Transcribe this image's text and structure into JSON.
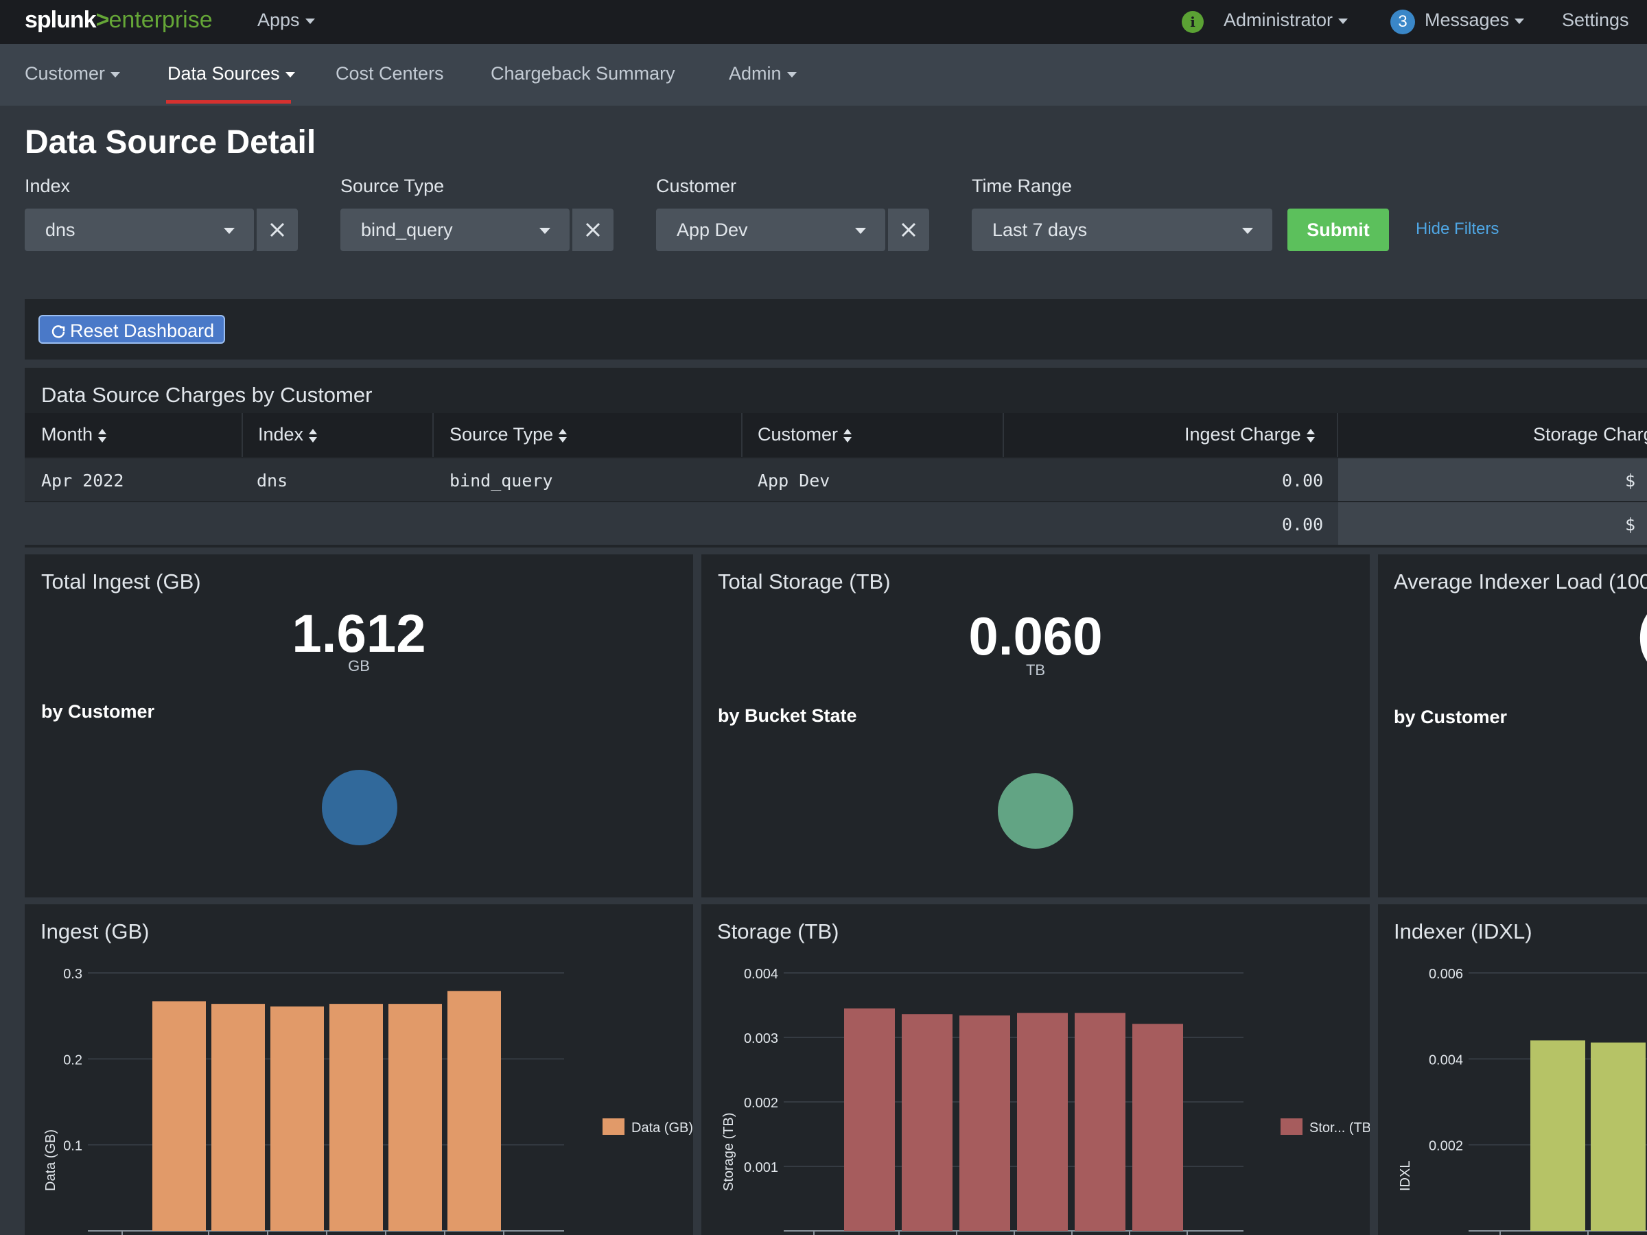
{
  "topbar": {
    "logo_brand": "splunk",
    "logo_gt": ">",
    "logo_product": "enterprise",
    "apps_label": "Apps",
    "user_label": "Administrator",
    "messages_count": "3",
    "messages_label": "Messages",
    "settings_label": "Settings"
  },
  "appnav": {
    "items": [
      {
        "label": "Customer"
      },
      {
        "label": "Data Sources"
      },
      {
        "label": "Cost Centers"
      },
      {
        "label": "Chargeback Summary"
      },
      {
        "label": "Admin"
      }
    ],
    "active": "Data Sources"
  },
  "page": {
    "title": "Data Source Detail"
  },
  "filters": {
    "index": {
      "label": "Index",
      "value": "dns"
    },
    "source_type": {
      "label": "Source Type",
      "value": "bind_query"
    },
    "customer": {
      "label": "Customer",
      "value": "App Dev"
    },
    "time_range": {
      "label": "Time Range",
      "value": "Last 7 days"
    },
    "submit_label": "Submit",
    "hide_filters_label": "Hide Filters"
  },
  "reset": {
    "label": "Reset Dashboard"
  },
  "charges_table": {
    "title": "Data Source Charges by Customer",
    "columns": [
      "Month",
      "Index",
      "Source Type",
      "Customer",
      "Ingest Charge",
      "Storage Charg"
    ],
    "rows": [
      {
        "month": "Apr 2022",
        "index": "dns",
        "source_type": "bind_query",
        "customer": "App Dev",
        "ingest_charge": "0.00",
        "storage_charge": "$ "
      }
    ],
    "total_row": {
      "ingest_charge": "0.00",
      "storage_charge": "$ "
    }
  },
  "single_values": {
    "ingest": {
      "title": "Total Ingest (GB)",
      "value": "1.612",
      "unit": "GB",
      "subhead": "by Customer",
      "color": "#31699b"
    },
    "storage": {
      "title": "Total Storage (TB)",
      "value": "0.060",
      "unit": "TB",
      "subhead": "by Bucket State",
      "color": "#62a484"
    },
    "indexer": {
      "title": "Average Indexer Load (100",
      "value_partial": "(",
      "subhead": "by Customer"
    }
  },
  "chart_data": [
    {
      "type": "bar",
      "title": "Ingest (GB)",
      "ylabel": "Data (GB)",
      "ylim": [
        0,
        0.3
      ],
      "yticks": [
        "0.1",
        "0.2",
        "0.3"
      ],
      "series": [
        {
          "name": "Data (GB)",
          "values": [
            0.267,
            0.264,
            0.261,
            0.264,
            0.264,
            0.279
          ],
          "color": "#e19a69"
        }
      ],
      "legend": "right"
    },
    {
      "type": "bar",
      "title": "Storage (TB)",
      "ylabel": "Storage (TB)",
      "ylim": [
        0,
        0.004
      ],
      "yticks": [
        "0.001",
        "0.002",
        "0.003",
        "0.004"
      ],
      "series": [
        {
          "name": "Stor... (TB)",
          "values": [
            0.00345,
            0.00336,
            0.00334,
            0.00338,
            0.00338,
            0.00321
          ],
          "color": "#a65c5d"
        }
      ],
      "legend": "right"
    },
    {
      "type": "bar",
      "title": "Indexer (IDXL)",
      "ylabel": "IDXL",
      "ylim": [
        0,
        0.006
      ],
      "yticks": [
        "0.002",
        "0.004",
        "0.006"
      ],
      "series": [
        {
          "values": [
            0.00443,
            0.00438
          ],
          "color": "#b6c366"
        }
      ],
      "legend": "none"
    }
  ]
}
